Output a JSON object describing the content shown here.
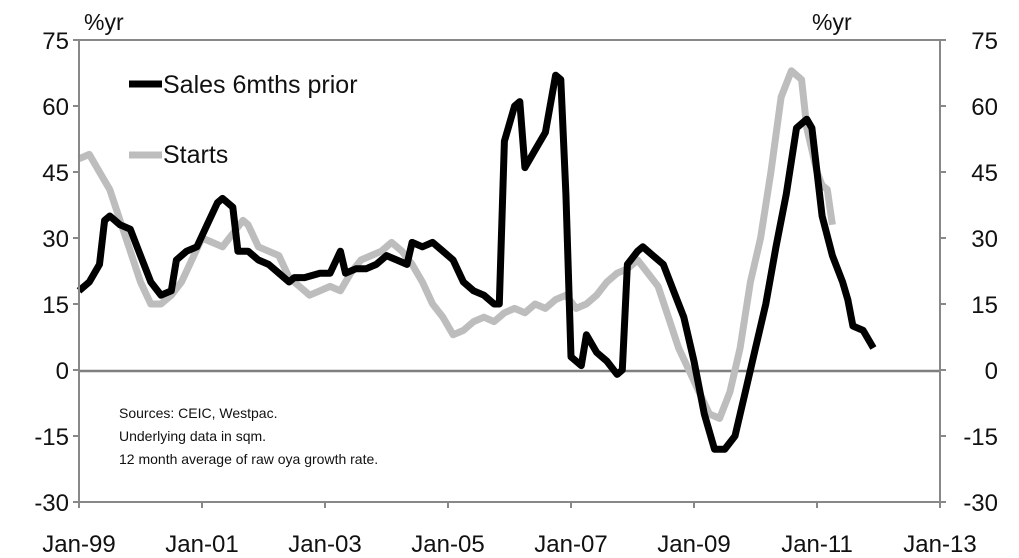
{
  "chart_data": {
    "type": "line",
    "y_unit_left": "%yr",
    "y_unit_right": "%yr",
    "ylim": [
      -30,
      75
    ],
    "yticks": [
      75,
      60,
      45,
      30,
      15,
      0,
      -15,
      -30
    ],
    "xlim": [
      "1999-01",
      "2013-01"
    ],
    "xticks": [
      "Jan-99",
      "Jan-01",
      "Jan-03",
      "Jan-05",
      "Jan-07",
      "Jan-09",
      "Jan-11",
      "Jan-13"
    ],
    "grid": false,
    "legend_placement": "top-left",
    "notes": [
      "Sources: CEIC, Westpac.",
      "Underlying data in sqm.",
      "12 month average of raw oya growth rate."
    ],
    "series": [
      {
        "name": "Sales 6mths prior",
        "color": "#000000",
        "points": [
          [
            "1999-01",
            18
          ],
          [
            "1999-03",
            20
          ],
          [
            "1999-05",
            24
          ],
          [
            "1999-06",
            34
          ],
          [
            "1999-07",
            35
          ],
          [
            "1999-09",
            33
          ],
          [
            "1999-11",
            32
          ],
          [
            "2000-01",
            26
          ],
          [
            "2000-03",
            20
          ],
          [
            "2000-05",
            17
          ],
          [
            "2000-07",
            18
          ],
          [
            "2000-08",
            25
          ],
          [
            "2000-10",
            27
          ],
          [
            "2000-12",
            28
          ],
          [
            "2001-02",
            33
          ],
          [
            "2001-04",
            38
          ],
          [
            "2001-05",
            39
          ],
          [
            "2001-07",
            37
          ],
          [
            "2001-08",
            27
          ],
          [
            "2001-10",
            27
          ],
          [
            "2001-12",
            25
          ],
          [
            "2002-02",
            24
          ],
          [
            "2002-04",
            22
          ],
          [
            "2002-06",
            20
          ],
          [
            "2002-07",
            21
          ],
          [
            "2002-09",
            21
          ],
          [
            "2002-12",
            22
          ],
          [
            "2003-02",
            22
          ],
          [
            "2003-04",
            27
          ],
          [
            "2003-05",
            22
          ],
          [
            "2003-07",
            23
          ],
          [
            "2003-09",
            23
          ],
          [
            "2003-11",
            24
          ],
          [
            "2004-01",
            26
          ],
          [
            "2004-03",
            25
          ],
          [
            "2004-05",
            24
          ],
          [
            "2004-06",
            29
          ],
          [
            "2004-08",
            28
          ],
          [
            "2004-10",
            29
          ],
          [
            "2004-12",
            27
          ],
          [
            "2005-02",
            25
          ],
          [
            "2005-04",
            20
          ],
          [
            "2005-06",
            18
          ],
          [
            "2005-08",
            17
          ],
          [
            "2005-10",
            15
          ],
          [
            "2005-11",
            15
          ],
          [
            "2005-12",
            52
          ],
          [
            "2006-02",
            60
          ],
          [
            "2006-03",
            61
          ],
          [
            "2006-04",
            46
          ],
          [
            "2006-06",
            50
          ],
          [
            "2006-08",
            54
          ],
          [
            "2006-10",
            67
          ],
          [
            "2006-11",
            66
          ],
          [
            "2006-12",
            40
          ],
          [
            "2007-01",
            3
          ],
          [
            "2007-03",
            1
          ],
          [
            "2007-04",
            8
          ],
          [
            "2007-06",
            4
          ],
          [
            "2007-08",
            2
          ],
          [
            "2007-10",
            -1
          ],
          [
            "2007-11",
            0
          ],
          [
            "2007-12",
            24
          ],
          [
            "2008-02",
            27
          ],
          [
            "2008-03",
            28
          ],
          [
            "2008-05",
            26
          ],
          [
            "2008-07",
            24
          ],
          [
            "2008-09",
            18
          ],
          [
            "2008-11",
            12
          ],
          [
            "2009-01",
            2
          ],
          [
            "2009-03",
            -10
          ],
          [
            "2009-05",
            -18
          ],
          [
            "2009-07",
            -18
          ],
          [
            "2009-09",
            -15
          ],
          [
            "2009-11",
            -5
          ],
          [
            "2010-01",
            5
          ],
          [
            "2010-03",
            15
          ],
          [
            "2010-05",
            28
          ],
          [
            "2010-07",
            40
          ],
          [
            "2010-09",
            55
          ],
          [
            "2010-11",
            57
          ],
          [
            "2010-12",
            55
          ],
          [
            "2011-01",
            45
          ],
          [
            "2011-02",
            35
          ],
          [
            "2011-04",
            26
          ],
          [
            "2011-06",
            20
          ],
          [
            "2011-07",
            16
          ],
          [
            "2011-08",
            10
          ],
          [
            "2011-10",
            9
          ],
          [
            "2011-12",
            5
          ]
        ]
      },
      {
        "name": "Starts",
        "color": "#bdbdbd",
        "points": [
          [
            "1999-01",
            48
          ],
          [
            "1999-03",
            49
          ],
          [
            "1999-05",
            45
          ],
          [
            "1999-07",
            41
          ],
          [
            "1999-09",
            34
          ],
          [
            "1999-11",
            27
          ],
          [
            "2000-01",
            20
          ],
          [
            "2000-03",
            15
          ],
          [
            "2000-05",
            15
          ],
          [
            "2000-07",
            17
          ],
          [
            "2000-09",
            20
          ],
          [
            "2000-11",
            25
          ],
          [
            "2001-01",
            30
          ],
          [
            "2001-03",
            29
          ],
          [
            "2001-05",
            28
          ],
          [
            "2001-07",
            31
          ],
          [
            "2001-09",
            34
          ],
          [
            "2001-10",
            33
          ],
          [
            "2001-12",
            28
          ],
          [
            "2002-02",
            27
          ],
          [
            "2002-04",
            26
          ],
          [
            "2002-06",
            21
          ],
          [
            "2002-08",
            19
          ],
          [
            "2002-10",
            17
          ],
          [
            "2002-12",
            18
          ],
          [
            "2003-02",
            19
          ],
          [
            "2003-04",
            18
          ],
          [
            "2003-06",
            22
          ],
          [
            "2003-08",
            25
          ],
          [
            "2003-10",
            26
          ],
          [
            "2003-12",
            27
          ],
          [
            "2004-02",
            29
          ],
          [
            "2004-04",
            27
          ],
          [
            "2004-06",
            24
          ],
          [
            "2004-08",
            20
          ],
          [
            "2004-10",
            15
          ],
          [
            "2004-12",
            12
          ],
          [
            "2005-02",
            8
          ],
          [
            "2005-04",
            9
          ],
          [
            "2005-06",
            11
          ],
          [
            "2005-08",
            12
          ],
          [
            "2005-10",
            11
          ],
          [
            "2005-12",
            13
          ],
          [
            "2006-02",
            14
          ],
          [
            "2006-04",
            13
          ],
          [
            "2006-06",
            15
          ],
          [
            "2006-08",
            14
          ],
          [
            "2006-10",
            16
          ],
          [
            "2006-12",
            17
          ],
          [
            "2007-02",
            14
          ],
          [
            "2007-04",
            15
          ],
          [
            "2007-06",
            17
          ],
          [
            "2007-08",
            20
          ],
          [
            "2007-10",
            22
          ],
          [
            "2007-12",
            23
          ],
          [
            "2008-02",
            25
          ],
          [
            "2008-04",
            22
          ],
          [
            "2008-06",
            19
          ],
          [
            "2008-08",
            12
          ],
          [
            "2008-10",
            5
          ],
          [
            "2008-12",
            0
          ],
          [
            "2009-02",
            -5
          ],
          [
            "2009-04",
            -10
          ],
          [
            "2009-06",
            -11
          ],
          [
            "2009-08",
            -5
          ],
          [
            "2009-10",
            5
          ],
          [
            "2009-12",
            20
          ],
          [
            "2010-02",
            30
          ],
          [
            "2010-04",
            45
          ],
          [
            "2010-06",
            62
          ],
          [
            "2010-08",
            68
          ],
          [
            "2010-10",
            66
          ],
          [
            "2010-11",
            55
          ],
          [
            "2011-01",
            45
          ],
          [
            "2011-02",
            42
          ],
          [
            "2011-03",
            41
          ],
          [
            "2011-04",
            33
          ]
        ]
      }
    ]
  }
}
